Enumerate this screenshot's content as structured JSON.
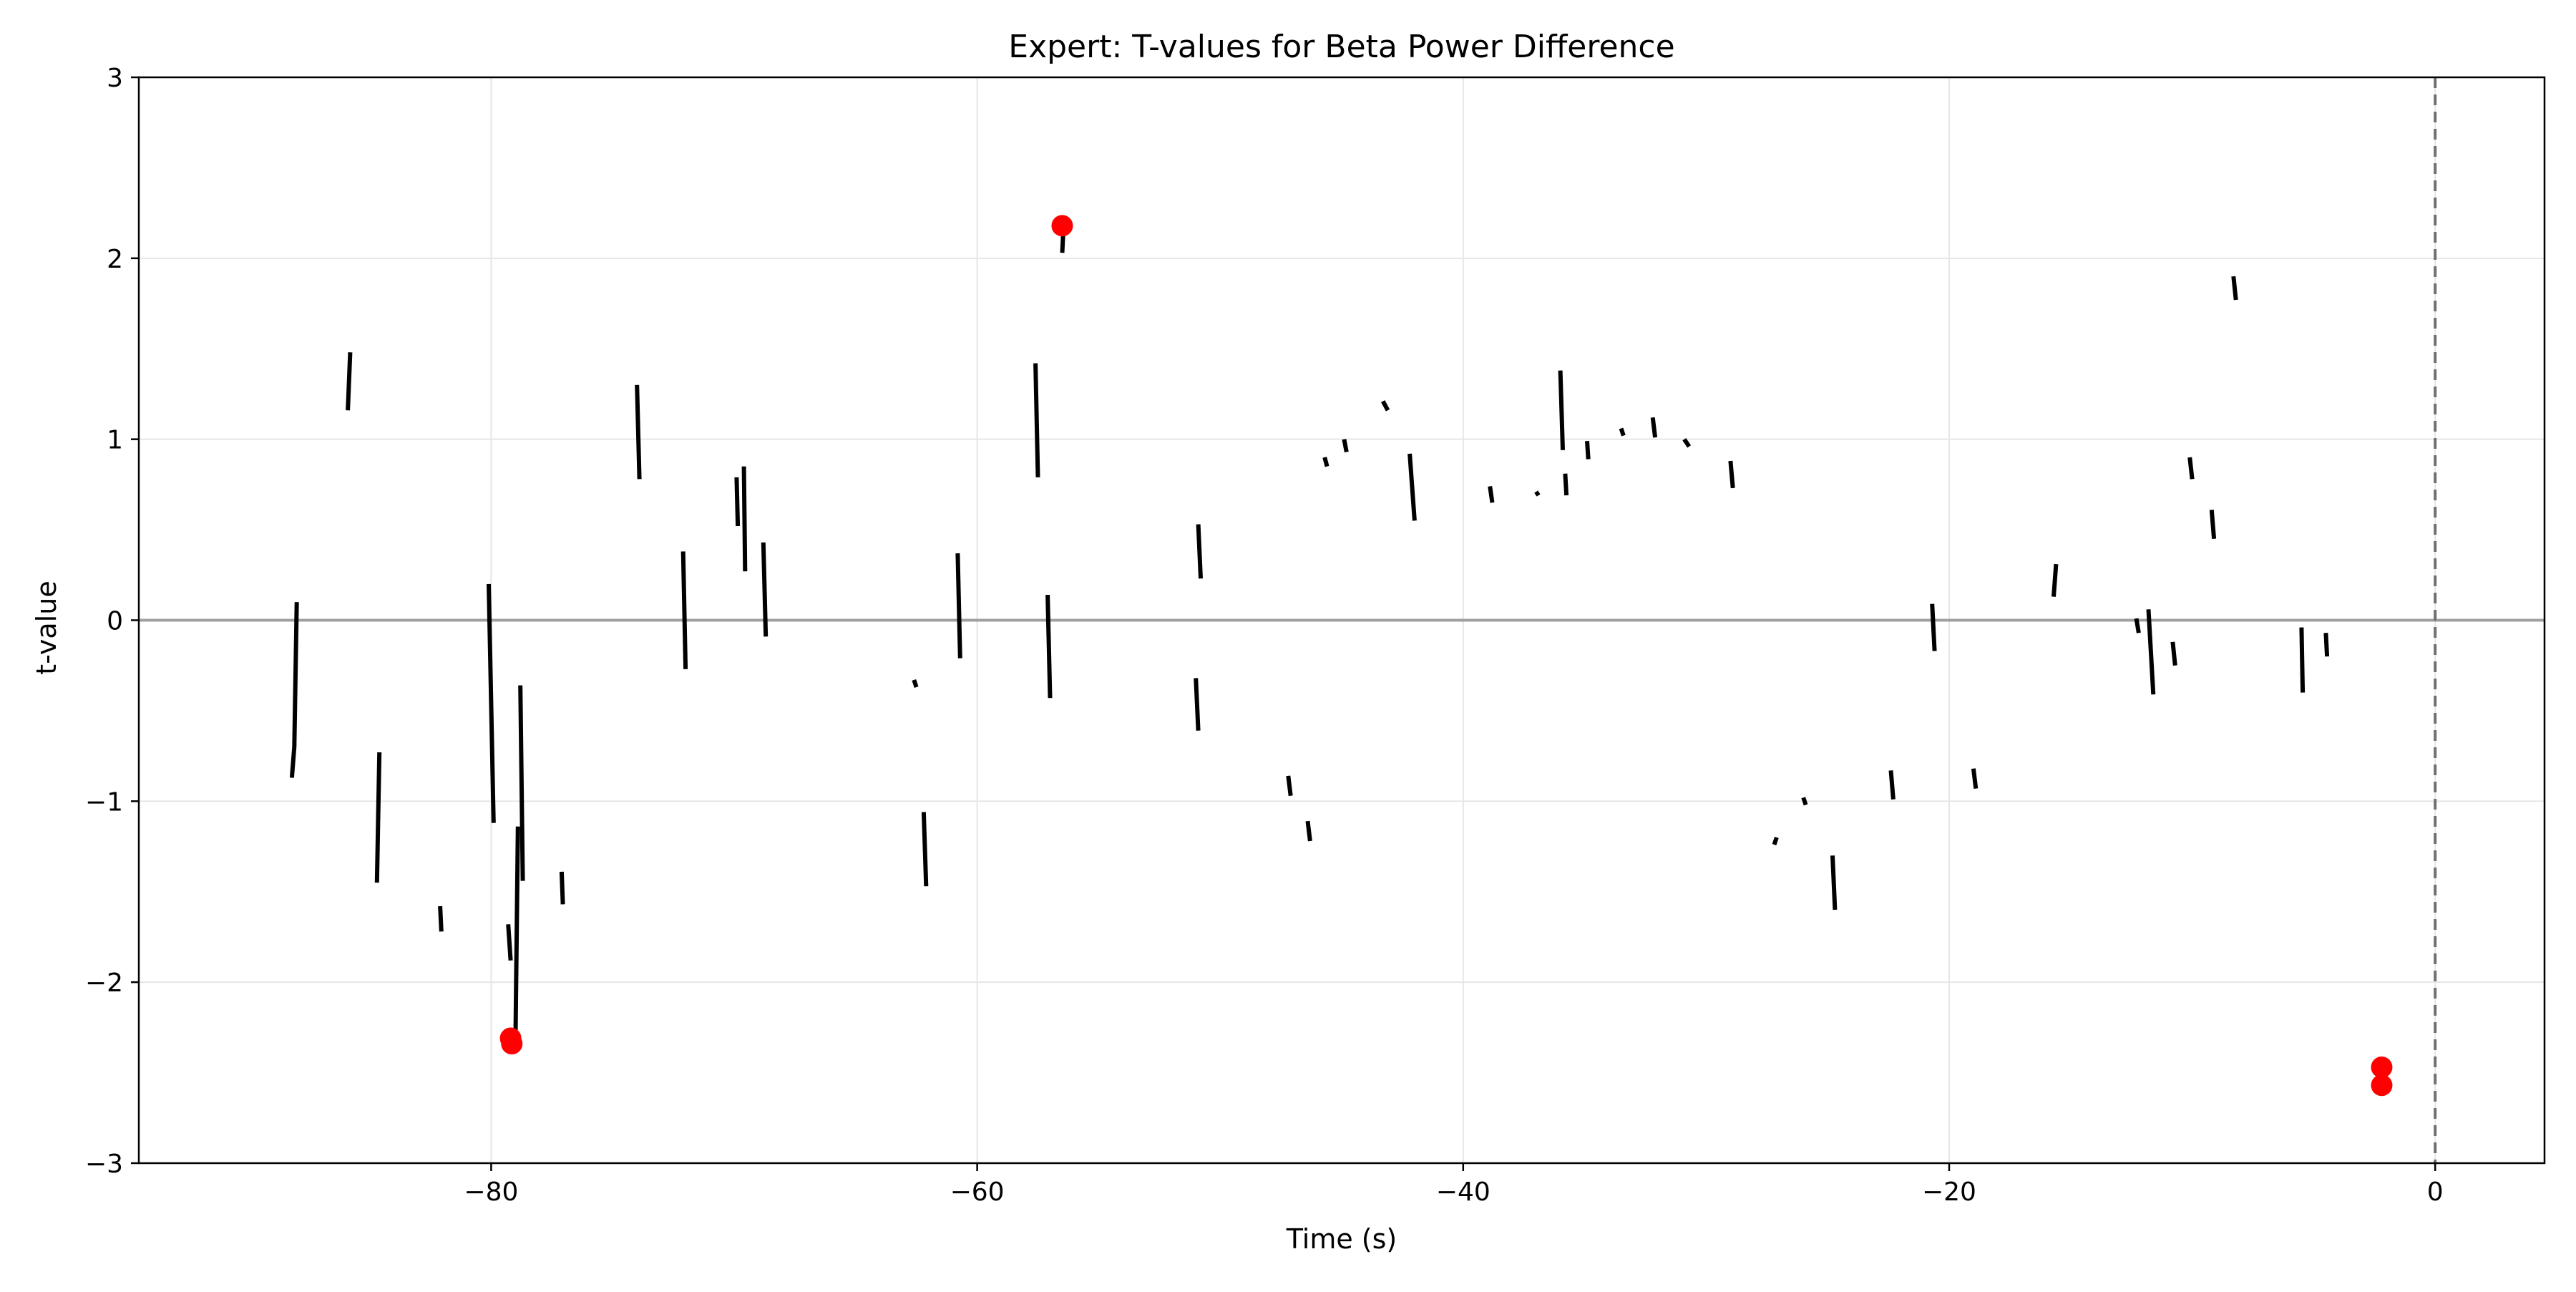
{
  "chart_data": {
    "type": "line",
    "title": "Expert: T-values for Beta Power Difference",
    "xlabel": "Time (s)",
    "ylabel": "t-value",
    "xlim": [
      -94.5,
      4.5
    ],
    "ylim": [
      -3,
      3
    ],
    "xticks": [
      -80,
      -60,
      -40,
      -20,
      0
    ],
    "xtick_labels": [
      "−80",
      "−60",
      "−40",
      "−20",
      "0"
    ],
    "yticks": [
      -3,
      -2,
      -1,
      0,
      1,
      2,
      3
    ],
    "ytick_labels": [
      "−3",
      "−2",
      "−1",
      "0",
      "1",
      "2",
      "3"
    ],
    "grid": true,
    "legend": "none",
    "reference_lines": [
      {
        "orientation": "horizontal",
        "value": 0,
        "color": "#a0a0a0",
        "style": "solid"
      },
      {
        "orientation": "vertical",
        "value": 0,
        "color": "#707070",
        "style": "dashed"
      }
    ],
    "series": [
      {
        "color": "#000000",
        "segments": [
          [
            [
              -88.2,
              -0.87
            ],
            [
              -88.1,
              -0.7
            ],
            [
              -88.0,
              0.1
            ]
          ],
          [
            [
              -85.9,
              1.16
            ],
            [
              -85.8,
              1.48
            ]
          ],
          [
            [
              -84.7,
              -1.45
            ],
            [
              -84.6,
              -0.73
            ]
          ],
          [
            [
              -82.1,
              -1.58
            ],
            [
              -82.05,
              -1.72
            ]
          ],
          [
            [
              -80.1,
              0.2
            ],
            [
              -79.9,
              -1.12
            ]
          ],
          [
            [
              -79.3,
              -1.68
            ],
            [
              -79.2,
              -1.88
            ]
          ],
          [
            [
              -79.0,
              -2.32
            ],
            [
              -78.9,
              -1.14
            ]
          ],
          [
            [
              -78.8,
              -0.36
            ],
            [
              -78.7,
              -1.44
            ]
          ],
          [
            [
              -77.1,
              -1.39
            ],
            [
              -77.05,
              -1.57
            ]
          ],
          [
            [
              -74.0,
              1.3
            ],
            [
              -73.9,
              0.78
            ]
          ],
          [
            [
              -72.1,
              0.38
            ],
            [
              -72.0,
              -0.27
            ]
          ],
          [
            [
              -69.9,
              0.79
            ],
            [
              -69.85,
              0.52
            ]
          ],
          [
            [
              -69.6,
              0.85
            ],
            [
              -69.55,
              0.27
            ]
          ],
          [
            [
              -68.8,
              0.43
            ],
            [
              -68.7,
              -0.09
            ]
          ],
          [
            [
              -62.6,
              -0.33
            ],
            [
              -62.5,
              -0.37
            ]
          ],
          [
            [
              -62.2,
              -1.06
            ],
            [
              -62.1,
              -1.47
            ]
          ],
          [
            [
              -60.8,
              0.37
            ],
            [
              -60.7,
              -0.21
            ]
          ],
          [
            [
              -57.6,
              1.42
            ],
            [
              -57.5,
              0.79
            ]
          ],
          [
            [
              -57.1,
              0.14
            ],
            [
              -57.0,
              -0.43
            ]
          ],
          [
            [
              -56.5,
              2.03
            ],
            [
              -56.45,
              2.17
            ]
          ],
          [
            [
              -50.9,
              0.53
            ],
            [
              -50.8,
              0.23
            ]
          ],
          [
            [
              -51.0,
              -0.32
            ],
            [
              -50.9,
              -0.61
            ]
          ],
          [
            [
              -47.2,
              -0.86
            ],
            [
              -47.1,
              -0.97
            ]
          ],
          [
            [
              -46.4,
              -1.11
            ],
            [
              -46.3,
              -1.22
            ]
          ],
          [
            [
              -45.7,
              0.9
            ],
            [
              -45.6,
              0.85
            ]
          ],
          [
            [
              -44.9,
              1.0
            ],
            [
              -44.8,
              0.93
            ]
          ],
          [
            [
              -43.3,
              1.21
            ],
            [
              -43.1,
              1.16
            ]
          ],
          [
            [
              -42.2,
              0.92
            ],
            [
              -42.0,
              0.55
            ]
          ],
          [
            [
              -38.9,
              0.74
            ],
            [
              -38.8,
              0.65
            ]
          ],
          [
            [
              -37.0,
              0.71
            ],
            [
              -36.9,
              0.69
            ]
          ],
          [
            [
              -36.0,
              1.38
            ],
            [
              -35.9,
              0.94
            ]
          ],
          [
            [
              -35.8,
              0.81
            ],
            [
              -35.75,
              0.69
            ]
          ],
          [
            [
              -34.9,
              0.99
            ],
            [
              -34.85,
              0.89
            ]
          ],
          [
            [
              -33.5,
              1.06
            ],
            [
              -33.4,
              1.02
            ]
          ],
          [
            [
              -32.2,
              1.12
            ],
            [
              -32.1,
              1.01
            ]
          ],
          [
            [
              -30.9,
              1.0
            ],
            [
              -30.7,
              0.96
            ]
          ],
          [
            [
              -29.0,
              0.88
            ],
            [
              -28.9,
              0.73
            ]
          ],
          [
            [
              -27.2,
              -1.24
            ],
            [
              -27.1,
              -1.2
            ]
          ],
          [
            [
              -26.0,
              -0.98
            ],
            [
              -25.9,
              -1.02
            ]
          ],
          [
            [
              -24.8,
              -1.3
            ],
            [
              -24.7,
              -1.6
            ]
          ],
          [
            [
              -22.4,
              -0.83
            ],
            [
              -22.3,
              -0.99
            ]
          ],
          [
            [
              -20.7,
              0.09
            ],
            [
              -20.6,
              -0.17
            ]
          ],
          [
            [
              -19.0,
              -0.82
            ],
            [
              -18.9,
              -0.93
            ]
          ],
          [
            [
              -15.7,
              0.13
            ],
            [
              -15.6,
              0.31
            ]
          ],
          [
            [
              -12.3,
              0.01
            ],
            [
              -12.2,
              -0.07
            ]
          ],
          [
            [
              -11.8,
              0.06
            ],
            [
              -11.6,
              -0.41
            ]
          ],
          [
            [
              -10.8,
              -0.12
            ],
            [
              -10.7,
              -0.25
            ]
          ],
          [
            [
              -10.1,
              0.9
            ],
            [
              -10.0,
              0.78
            ]
          ],
          [
            [
              -9.2,
              0.61
            ],
            [
              -9.1,
              0.45
            ]
          ],
          [
            [
              -8.3,
              1.9
            ],
            [
              -8.2,
              1.77
            ]
          ],
          [
            [
              -5.5,
              -0.04
            ],
            [
              -5.45,
              -0.4
            ]
          ],
          [
            [
              -4.5,
              -0.07
            ],
            [
              -4.45,
              -0.2
            ]
          ]
        ]
      },
      {
        "marker": "circle",
        "color": "#ff0000",
        "points": [
          [
            -79.2,
            -2.31
          ],
          [
            -79.15,
            -2.34
          ],
          [
            -56.5,
            2.18
          ],
          [
            -2.2,
            -2.47
          ],
          [
            -2.2,
            -2.57
          ]
        ]
      }
    ]
  }
}
